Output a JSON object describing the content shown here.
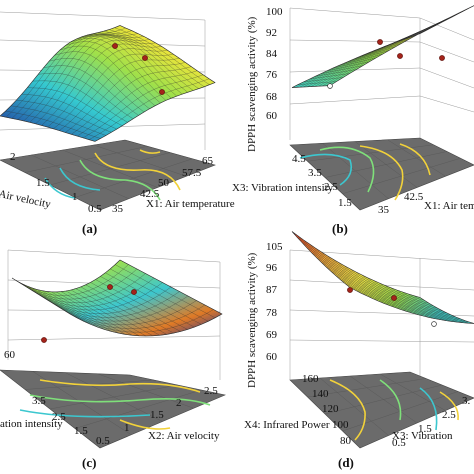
{
  "chart_data": [
    {
      "type": "surface3d",
      "panel": "(a)",
      "xlabel": "X1: Air temperature",
      "ylabel": "Air velocity",
      "zlabel": "",
      "x_ticks": [
        "35",
        "42.5",
        "50",
        "57.5",
        "65"
      ],
      "y_ticks": [
        "0.5",
        "1",
        "1.5",
        "2"
      ],
      "z_ticks": [],
      "contour_levels": 4
    },
    {
      "type": "surface3d",
      "panel": "(b)",
      "xlabel": "X1: Air tem",
      "ylabel": "X3: Vibration intensity",
      "zlabel": "DPPH scavenging activity (%)",
      "x_ticks": [
        "35",
        "42.5"
      ],
      "y_ticks": [
        "1.5",
        "2.5",
        "3.5",
        "4.5"
      ],
      "z_ticks": [
        "60",
        "68",
        "76",
        "84",
        "92",
        "100"
      ],
      "contour_levels": 4
    },
    {
      "type": "surface3d",
      "panel": "(c)",
      "xlabel": "X2: Air velocity",
      "ylabel": "ation intensity",
      "zlabel": "",
      "x_ticks": [
        "0.5",
        "1",
        "1.5",
        "2",
        "2.5"
      ],
      "y_ticks": [
        "1.5",
        "2.5",
        "3.5"
      ],
      "z_ticks": [
        "60"
      ],
      "contour_levels": 4
    },
    {
      "type": "surface3d",
      "panel": "(d)",
      "xlabel": "X3: Vibration",
      "ylabel": "X4: Infrared Power",
      "zlabel": "DPPH scavenging activity (%)",
      "x_ticks": [
        "0.5",
        "1.5",
        "2.5",
        "3."
      ],
      "y_ticks": [
        "80",
        "100",
        "120",
        "140",
        "160"
      ],
      "z_ticks": [
        "60",
        "69",
        "78",
        "87",
        "96",
        "105"
      ],
      "contour_levels": 4
    }
  ]
}
